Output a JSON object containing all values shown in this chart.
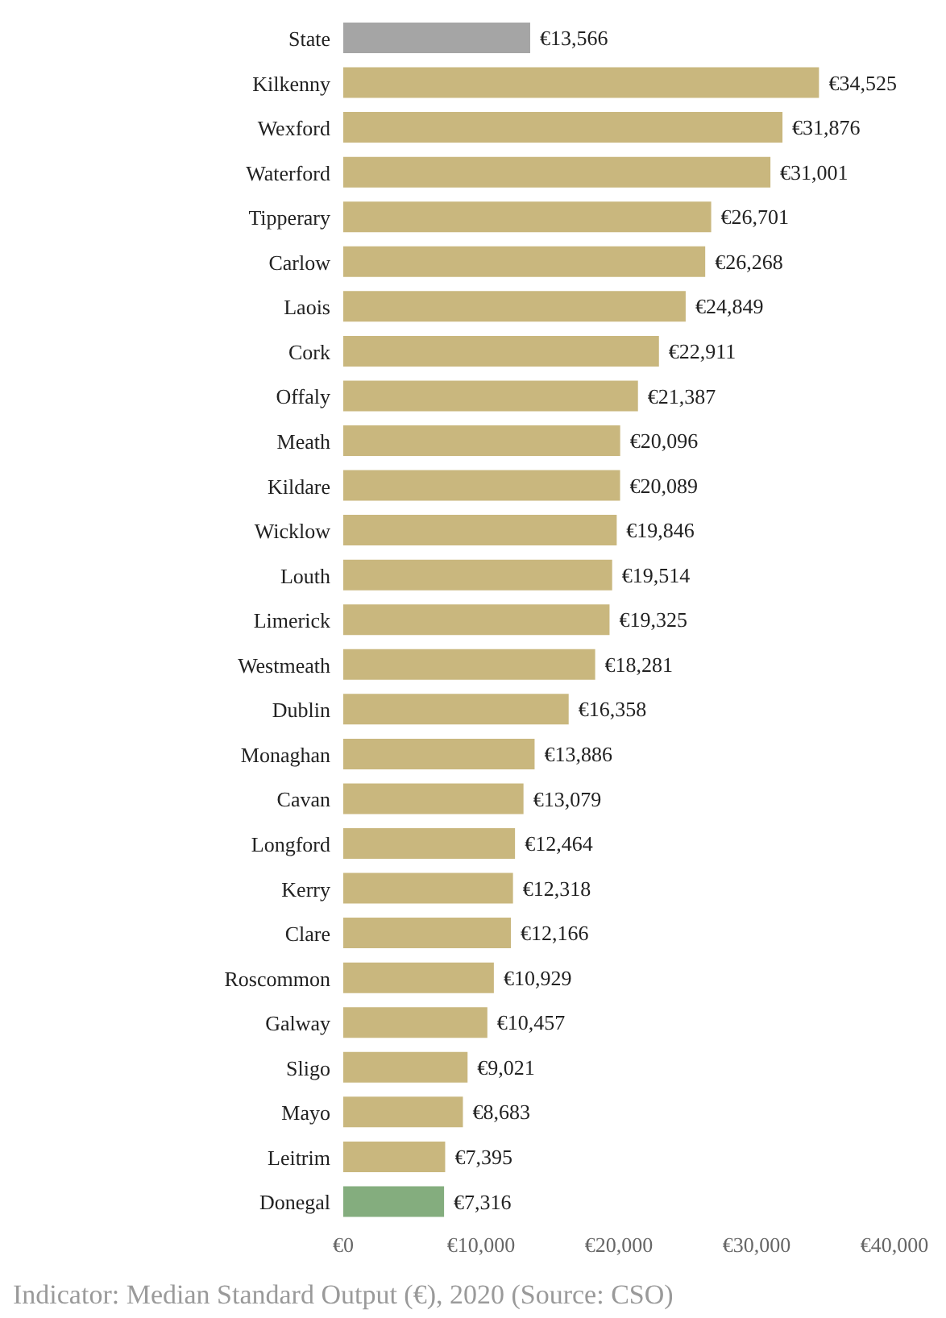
{
  "chart_data": {
    "type": "bar",
    "orientation": "horizontal",
    "categories": [
      "State",
      "Kilkenny",
      "Wexford",
      "Waterford",
      "Tipperary",
      "Carlow",
      "Laois",
      "Cork",
      "Offaly",
      "Meath",
      "Kildare",
      "Wicklow",
      "Louth",
      "Limerick",
      "Westmeath",
      "Dublin",
      "Monaghan",
      "Cavan",
      "Longford",
      "Kerry",
      "Clare",
      "Roscommon",
      "Galway",
      "Sligo",
      "Mayo",
      "Leitrim",
      "Donegal"
    ],
    "values": [
      13566,
      34525,
      31876,
      31001,
      26701,
      26268,
      24849,
      22911,
      21387,
      20096,
      20089,
      19846,
      19514,
      19325,
      18281,
      16358,
      13886,
      13079,
      12464,
      12318,
      12166,
      10929,
      10457,
      9021,
      8683,
      7395,
      7316
    ],
    "value_labels": [
      "€13,566",
      "€34,525",
      "€31,876",
      "€31,001",
      "€26,701",
      "€26,268",
      "€24,849",
      "€22,911",
      "€21,387",
      "€20,096",
      "€20,089",
      "€19,846",
      "€19,514",
      "€19,325",
      "€18,281",
      "€16,358",
      "€13,886",
      "€13,079",
      "€12,464",
      "€12,318",
      "€12,166",
      "€10,929",
      "€10,457",
      "€9,021",
      "€8,683",
      "€7,395",
      "€7,316"
    ],
    "colors": [
      "#a5a5a5",
      "#c9b77e",
      "#c9b77e",
      "#c9b77e",
      "#c9b77e",
      "#c9b77e",
      "#c9b77e",
      "#c9b77e",
      "#c9b77e",
      "#c9b77e",
      "#c9b77e",
      "#c9b77e",
      "#c9b77e",
      "#c9b77e",
      "#c9b77e",
      "#c9b77e",
      "#c9b77e",
      "#c9b77e",
      "#c9b77e",
      "#c9b77e",
      "#c9b77e",
      "#c9b77e",
      "#c9b77e",
      "#c9b77e",
      "#c9b77e",
      "#c9b77e",
      "#84ad7e"
    ],
    "xlim": [
      0,
      40000
    ],
    "xticks": [
      {
        "value": 0,
        "label": "€0"
      },
      {
        "value": 10000,
        "label": "€10,000"
      },
      {
        "value": 20000,
        "label": "€20,000"
      },
      {
        "value": 30000,
        "label": "€30,000"
      },
      {
        "value": 40000,
        "label": "€40,000"
      }
    ],
    "grid": false,
    "legend": false,
    "annotations": [
      "Indicator: Median Standard Output (€), 2020 (Source: CSO)"
    ]
  }
}
